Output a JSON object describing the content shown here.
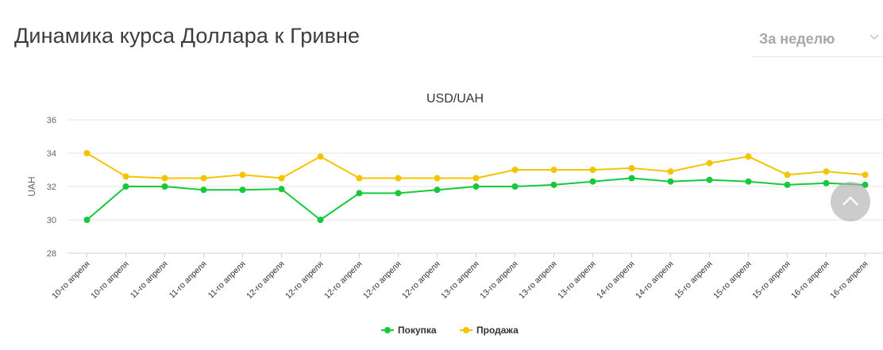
{
  "header": {
    "title": "Динамика курса Доллара к Гривне",
    "period_selected": "За неделю",
    "period_icon": "chevron-down-icon"
  },
  "scroll_top_icon": "chevron-up-icon",
  "chart_data": {
    "type": "line",
    "title": "USD/UAH",
    "ylabel": "UAH",
    "xlabel": "",
    "ylim": [
      28,
      36
    ],
    "yticks": [
      28,
      30,
      32,
      34,
      36
    ],
    "grid": true,
    "legend": "bottom-center",
    "categories": [
      "10-го апреля",
      "10-го апреля",
      "11-го апреля",
      "11-го апреля",
      "11-го апреля",
      "12-го апреля",
      "12-го апреля",
      "12-го апреля",
      "12-го апреля",
      "12-го апреля",
      "13-го апреля",
      "13-го апреля",
      "13-го апреля",
      "13-го апреля",
      "14-го апреля",
      "14-го апреля",
      "15-го апреля",
      "15-го апреля",
      "15-го апреля",
      "16-го апреля",
      "16-го апреля"
    ],
    "series": [
      {
        "name": "Покупка",
        "color": "#17c93a",
        "values": [
          30.0,
          32.0,
          32.0,
          31.8,
          31.8,
          31.85,
          30.0,
          31.6,
          31.6,
          31.8,
          32.0,
          32.0,
          32.1,
          32.3,
          32.5,
          32.3,
          32.4,
          32.3,
          32.1,
          32.2,
          32.1
        ]
      },
      {
        "name": "Продажа",
        "color": "#f5c400",
        "values": [
          34.0,
          32.6,
          32.5,
          32.5,
          32.7,
          32.5,
          33.8,
          32.5,
          32.5,
          32.5,
          32.5,
          33.0,
          33.0,
          33.0,
          33.1,
          32.9,
          33.4,
          33.8,
          32.7,
          32.9,
          32.7
        ]
      }
    ]
  }
}
